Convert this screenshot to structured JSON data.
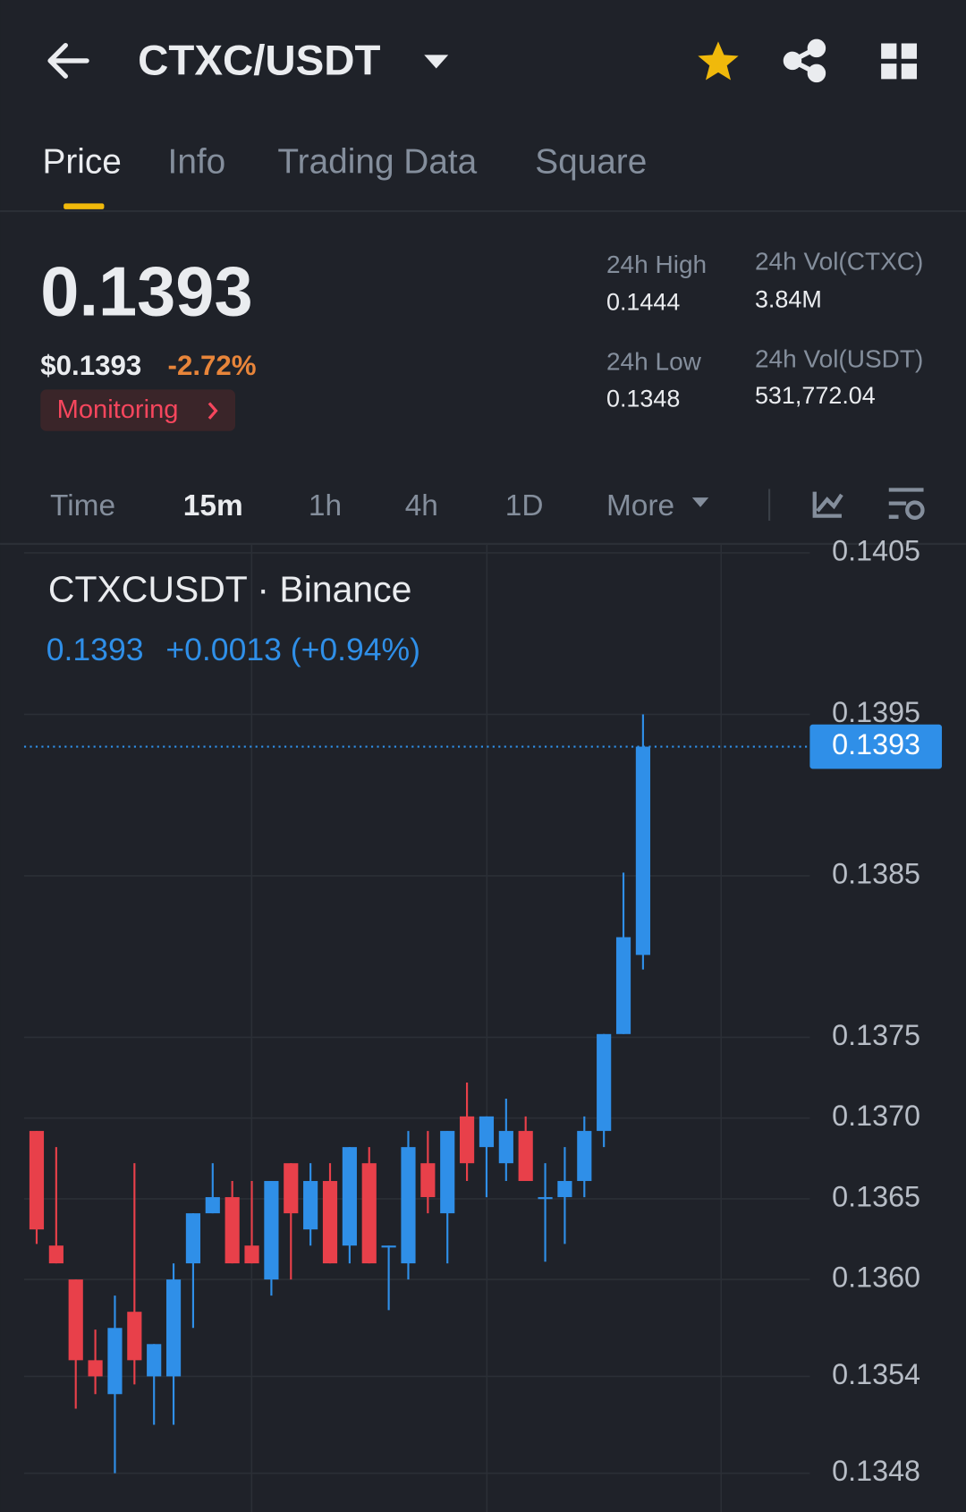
{
  "header": {
    "pair": "CTXC/USDT"
  },
  "tabs": [
    "Price",
    "Info",
    "Trading Data",
    "Square"
  ],
  "ticker": {
    "price": "0.1393",
    "usd_price": "$0.1393",
    "change": "-2.72%",
    "monitoring": "Monitoring"
  },
  "stats": [
    {
      "label": "24h High",
      "value": "0.1444"
    },
    {
      "label": "24h Vol(CTXC)",
      "value": "3.84M"
    },
    {
      "label": "24h Low",
      "value": "0.1348"
    },
    {
      "label": "24h Vol(USDT)",
      "value": "531,772.04"
    }
  ],
  "intervals": [
    "Time",
    "15m",
    "1h",
    "4h",
    "1D",
    "More"
  ],
  "chart_data": {
    "type": "candlestick",
    "title": "CTXCUSDT · Binance",
    "legend_price": "0.1393",
    "legend_change": "+0.0013 (+0.94%)",
    "up_color": "#2f8fe8",
    "down_color": "#e8404a",
    "open": [
      0.13692,
      0.13621,
      0.136,
      0.1355,
      0.13529,
      0.1358,
      0.1354,
      0.1354,
      0.1361,
      0.13641,
      0.13651,
      0.13621,
      0.136,
      0.13672,
      0.13631,
      0.13661,
      0.13621,
      0.13672,
      0.13621,
      0.1361,
      0.13672,
      0.13641,
      0.13701,
      0.13682,
      0.13672,
      0.13692,
      0.13651,
      0.13651,
      0.13661,
      0.13692,
      0.13752,
      0.13801
    ],
    "high": [
      0.13692,
      0.13682,
      0.136,
      0.13569,
      0.1359,
      0.13672,
      0.1356,
      0.1361,
      0.13641,
      0.13672,
      0.13661,
      0.13661,
      0.13661,
      0.13672,
      0.13672,
      0.13672,
      0.13682,
      0.13682,
      0.13621,
      0.13692,
      0.13692,
      0.13692,
      0.13722,
      0.13701,
      0.13712,
      0.13701,
      0.13672,
      0.13682,
      0.13701,
      0.13752,
      0.13852,
      0.1395
    ],
    "low": [
      0.13622,
      0.1361,
      0.1352,
      0.13529,
      0.1348,
      0.13535,
      0.1351,
      0.1351,
      0.1357,
      0.13641,
      0.1361,
      0.1361,
      0.1359,
      0.136,
      0.13621,
      0.1361,
      0.1361,
      0.1361,
      0.13581,
      0.136,
      0.13641,
      0.1361,
      0.13661,
      0.13651,
      0.13661,
      0.13661,
      0.13611,
      0.13622,
      0.13651,
      0.13682,
      0.13752,
      0.13792
    ],
    "close": [
      0.13631,
      0.1361,
      0.1355,
      0.1354,
      0.1357,
      0.1355,
      0.1356,
      0.136,
      0.13641,
      0.13651,
      0.1361,
      0.1361,
      0.13661,
      0.13641,
      0.13661,
      0.1361,
      0.13682,
      0.1361,
      0.13621,
      0.13682,
      0.13651,
      0.13692,
      0.13672,
      0.13701,
      0.13692,
      0.13661,
      0.13651,
      0.13661,
      0.13692,
      0.13752,
      0.13812,
      0.1393
    ],
    "ylim": [
      0.13456,
      0.14055
    ],
    "yticks": [
      0.1405,
      0.1395,
      0.1385,
      0.1375,
      {
        "value": 0.137,
        "label": "0.1370"
      },
      0.1365,
      {
        "value": 0.136,
        "label": "0.1360"
      },
      0.1354,
      0.1348
    ],
    "last_price": 0.1393,
    "grid": true
  }
}
